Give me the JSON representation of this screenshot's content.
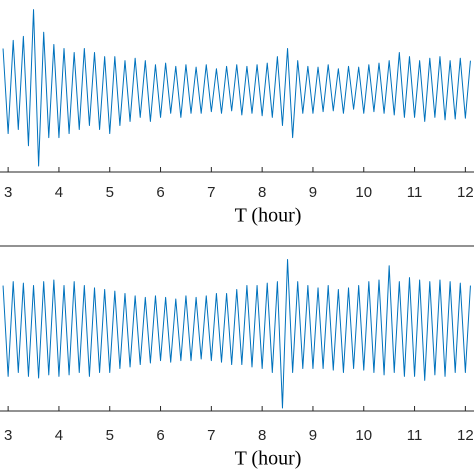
{
  "chart_data": [
    {
      "type": "line",
      "xlabel": "T (hour)",
      "x": [
        2.9,
        3,
        3.1,
        3.2,
        3.3,
        3.4,
        3.5,
        3.6,
        3.7,
        3.8,
        3.9,
        4,
        4.1,
        4.2,
        4.3,
        4.4,
        4.5,
        4.6,
        4.7,
        4.8,
        4.9,
        5,
        5.1,
        5.2,
        5.3,
        5.4,
        5.5,
        5.6,
        5.7,
        5.8,
        5.9,
        6,
        6.1,
        6.2,
        6.3,
        6.4,
        6.5,
        6.6,
        6.7,
        6.8,
        6.9,
        7,
        7.1,
        7.2,
        7.3,
        7.4,
        7.5,
        7.6,
        7.7,
        7.8,
        7.9,
        8,
        8.1,
        8.2,
        8.3,
        8.4,
        8.5,
        8.6,
        8.7,
        8.8,
        8.9,
        9,
        9.1,
        9.2,
        9.3,
        9.4,
        9.5,
        9.6,
        9.7,
        9.8,
        9.9,
        10,
        10.1,
        10.2,
        10.3,
        10.4,
        10.5,
        10.6,
        10.7,
        10.8,
        10.9,
        11,
        11.1,
        11.2,
        11.3,
        11.4,
        11.5,
        11.6,
        11.7,
        11.8,
        11.9,
        12,
        12.1
      ],
      "series": [
        {
          "color": "#0072bd",
          "values": [
            0.5,
            -0.55,
            0.6,
            -0.5,
            0.65,
            -0.7,
            0.98,
            -0.95,
            0.7,
            -0.6,
            0.55,
            -0.6,
            0.5,
            -0.55,
            0.45,
            -0.5,
            0.5,
            -0.45,
            0.45,
            -0.5,
            0.4,
            -0.55,
            0.4,
            -0.45,
            0.35,
            -0.4,
            0.38,
            -0.35,
            0.35,
            -0.4,
            0.3,
            -0.35,
            0.32,
            -0.3,
            0.28,
            -0.35,
            0.3,
            -0.3,
            0.27,
            -0.3,
            0.3,
            -0.28,
            0.25,
            -0.3,
            0.28,
            -0.27,
            0.3,
            -0.32,
            0.28,
            -0.3,
            0.3,
            -0.33,
            0.32,
            -0.35,
            0.4,
            -0.45,
            0.5,
            -0.6,
            0.35,
            -0.3,
            0.28,
            -0.3,
            0.27,
            -0.28,
            0.3,
            -0.27,
            0.25,
            -0.3,
            0.28,
            -0.25,
            0.27,
            -0.3,
            0.3,
            -0.28,
            0.32,
            -0.3,
            0.35,
            -0.32,
            0.45,
            -0.35,
            0.4,
            -0.35,
            0.35,
            -0.4,
            0.38,
            -0.35,
            0.4,
            -0.38,
            0.35,
            -0.37,
            0.38,
            -0.36,
            0.35
          ]
        }
      ],
      "xlim": [
        2.84,
        12.17
      ],
      "ylim": [
        -1,
        1
      ],
      "xticks": [
        3,
        4,
        5,
        6,
        7,
        8,
        9,
        10,
        11,
        12
      ]
    },
    {
      "type": "line",
      "xlabel": "T (hour)",
      "x": [
        2.9,
        3,
        3.1,
        3.2,
        3.3,
        3.4,
        3.5,
        3.6,
        3.7,
        3.8,
        3.9,
        4,
        4.1,
        4.2,
        4.3,
        4.4,
        4.5,
        4.6,
        4.7,
        4.8,
        4.9,
        5,
        5.1,
        5.2,
        5.3,
        5.4,
        5.5,
        5.6,
        5.7,
        5.8,
        5.9,
        6,
        6.1,
        6.2,
        6.3,
        6.4,
        6.5,
        6.6,
        6.7,
        6.8,
        6.9,
        7,
        7.1,
        7.2,
        7.3,
        7.4,
        7.5,
        7.6,
        7.7,
        7.8,
        7.9,
        8,
        8.1,
        8.2,
        8.3,
        8.4,
        8.5,
        8.6,
        8.7,
        8.8,
        8.9,
        9,
        9.1,
        9.2,
        9.3,
        9.4,
        9.5,
        9.6,
        9.7,
        9.8,
        9.9,
        10,
        10.1,
        10.2,
        10.3,
        10.4,
        10.5,
        10.6,
        10.7,
        10.8,
        10.9,
        11,
        11.1,
        11.2,
        11.3,
        11.4,
        11.5,
        11.6,
        11.7,
        11.8,
        11.9,
        12,
        12.1
      ],
      "series": [
        {
          "color": "#0072bd",
          "values": [
            0.55,
            -0.6,
            0.6,
            -0.55,
            0.58,
            -0.6,
            0.55,
            -0.62,
            0.6,
            -0.58,
            0.62,
            -0.6,
            0.55,
            -0.58,
            0.6,
            -0.55,
            0.55,
            -0.6,
            0.52,
            -0.55,
            0.5,
            -0.55,
            0.48,
            -0.5,
            0.45,
            -0.48,
            0.42,
            -0.45,
            0.4,
            -0.43,
            0.42,
            -0.4,
            0.4,
            -0.42,
            0.38,
            -0.4,
            0.42,
            -0.4,
            0.4,
            -0.38,
            0.42,
            -0.4,
            0.45,
            -0.42,
            0.45,
            -0.45,
            0.5,
            -0.45,
            0.55,
            -0.48,
            0.55,
            -0.5,
            0.58,
            -0.55,
            0.6,
            -1.0,
            0.88,
            -0.55,
            0.6,
            -0.5,
            0.55,
            -0.5,
            0.52,
            -0.5,
            0.55,
            -0.52,
            0.5,
            -0.55,
            0.52,
            -0.5,
            0.55,
            -0.52,
            0.6,
            -0.55,
            0.62,
            -0.58,
            0.8,
            -0.55,
            0.6,
            -0.6,
            0.65,
            -0.6,
            0.62,
            -0.65,
            0.6,
            -0.58,
            0.62,
            -0.6,
            0.6,
            -0.55,
            0.58,
            -0.55,
            0.55
          ]
        }
      ],
      "xlim": [
        2.84,
        12.17
      ],
      "ylim": [
        -1,
        1
      ],
      "xticks": [
        3,
        4,
        5,
        6,
        7,
        8,
        9,
        10,
        11,
        12
      ]
    }
  ]
}
